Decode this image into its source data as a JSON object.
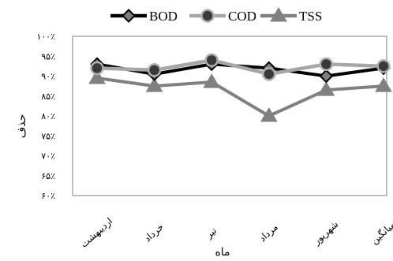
{
  "chart_data": {
    "type": "line",
    "xlabel": "ماه",
    "ylabel": "حذف",
    "categories": [
      "اردیبهشت",
      "خرداد",
      "تیر",
      "مرداد",
      "شهریور",
      "میانگین"
    ],
    "ylim": [
      60,
      100
    ],
    "yticks": [
      60,
      65,
      70,
      75,
      80,
      85,
      90,
      95,
      100
    ],
    "ytick_labels": [
      "۶۰٪",
      "۶۵٪",
      "۷۰٪",
      "۷۵٪",
      "۸۰٪",
      "۸۵٪",
      "۹۰٪",
      "۹۵٪",
      "۱۰۰٪"
    ],
    "grid": false,
    "legend_position": "top",
    "series": [
      {
        "name": "BOD",
        "color": "#000000",
        "marker": "diamond",
        "values": [
          93,
          90.5,
          93,
          92,
          90,
          92
        ]
      },
      {
        "name": "COD",
        "color": "#a6a6a6",
        "marker": "circle",
        "values": [
          92,
          91.5,
          94,
          90.5,
          93,
          92.5
        ]
      },
      {
        "name": "TSS",
        "color": "#808080",
        "marker": "triangle",
        "values": [
          89.5,
          87.5,
          88.5,
          80,
          86.5,
          87.5
        ]
      }
    ]
  }
}
